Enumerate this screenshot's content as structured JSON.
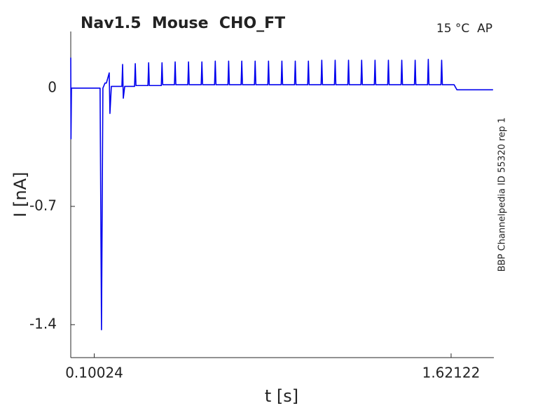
{
  "chart_data": {
    "type": "line",
    "title": "Nav1.5  Mouse  CHO_FT",
    "annotation": "15 °C  AP",
    "side_note": "BBP Channelpedia ID 55320 rep 1",
    "xlabel": "t [s]",
    "ylabel": "I [nA]",
    "color": "#0000ee",
    "xlim": [
      0,
      1.8035
    ],
    "ylim": [
      -1.595,
      0.335
    ],
    "xticks": [
      0.10024,
      1.62122
    ],
    "yticks": [
      -1.4,
      -0.7,
      0
    ],
    "x": [
      0,
      0.001,
      0.003,
      0.125,
      0.131,
      0.137,
      0.146,
      0.152,
      0.164,
      0.167,
      0.173,
      0.218,
      0.221,
      0.224,
      0.23,
      0.272,
      0.275,
      0.278,
      0.329,
      0.332,
      0.335,
      0.386,
      0.389,
      0.392,
      0.442,
      0.445,
      0.448,
      0.499,
      0.502,
      0.505,
      0.556,
      0.559,
      0.562,
      0.613,
      0.616,
      0.619,
      0.67,
      0.673,
      0.676,
      0.726,
      0.729,
      0.732,
      0.783,
      0.786,
      0.789,
      0.84,
      0.843,
      0.846,
      0.897,
      0.9,
      0.903,
      0.954,
      0.957,
      0.96,
      1.01,
      1.013,
      1.016,
      1.067,
      1.07,
      1.073,
      1.124,
      1.127,
      1.13,
      1.181,
      1.184,
      1.187,
      1.237,
      1.24,
      1.243,
      1.294,
      1.297,
      1.3,
      1.351,
      1.354,
      1.357,
      1.408,
      1.411,
      1.414,
      1.465,
      1.468,
      1.471,
      1.521,
      1.524,
      1.527,
      1.578,
      1.581,
      1.584,
      1.634,
      1.646,
      1.8
    ],
    "values": [
      0.18,
      -0.3,
      0,
      0,
      -1.43,
      0,
      0.03,
      0.03,
      0.09,
      -0.15,
      0.01,
      0.01,
      0.14,
      -0.06,
      0.01,
      0.01,
      0.145,
      0.015,
      0.015,
      0.15,
      0.015,
      0.015,
      0.15,
      0.02,
      0.02,
      0.155,
      0.02,
      0.02,
      0.155,
      0.02,
      0.02,
      0.155,
      0.02,
      0.02,
      0.16,
      0.02,
      0.02,
      0.16,
      0.02,
      0.02,
      0.16,
      0.02,
      0.02,
      0.16,
      0.02,
      0.02,
      0.16,
      0.02,
      0.02,
      0.16,
      0.02,
      0.02,
      0.16,
      0.02,
      0.02,
      0.16,
      0.02,
      0.02,
      0.165,
      0.02,
      0.02,
      0.165,
      0.02,
      0.02,
      0.165,
      0.02,
      0.02,
      0.165,
      0.02,
      0.02,
      0.165,
      0.02,
      0.02,
      0.165,
      0.02,
      0.02,
      0.165,
      0.02,
      0.02,
      0.165,
      0.02,
      0.02,
      0.17,
      0.02,
      0.02,
      0.165,
      0.02,
      0.02,
      -0.01,
      -0.01
    ]
  }
}
